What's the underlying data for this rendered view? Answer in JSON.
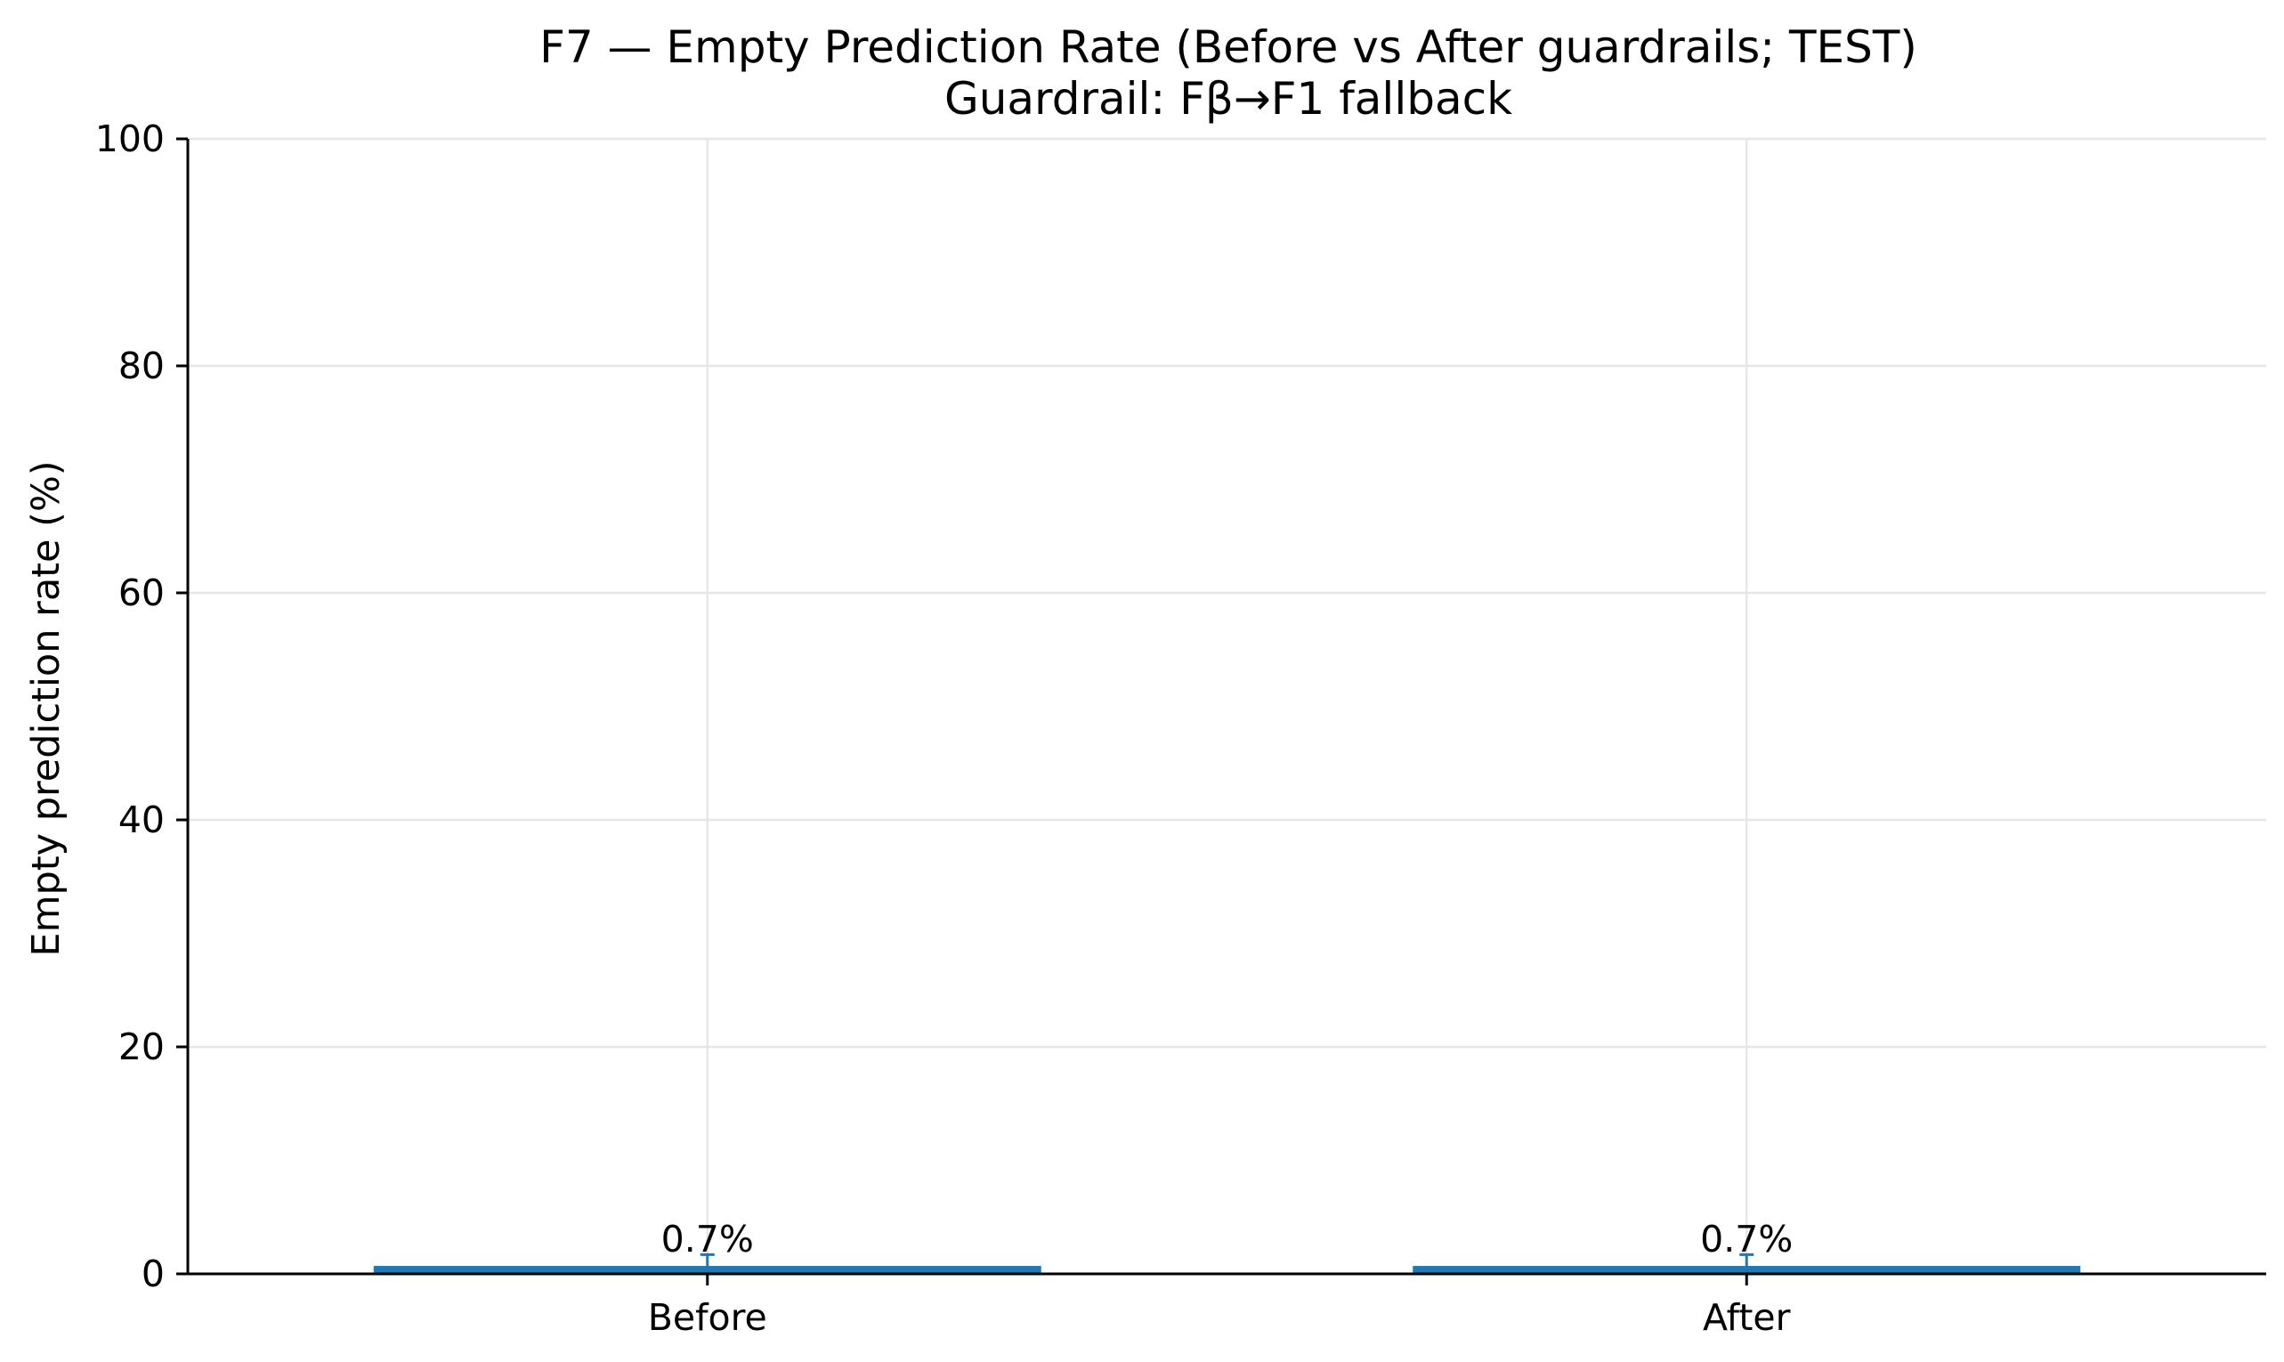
{
  "chart_data": {
    "type": "bar",
    "title": "F7 — Empty Prediction Rate (Before vs After guardrails; TEST)",
    "subtitle": "Guardrail: Fβ→F1 fallback",
    "xlabel": "",
    "ylabel": "Empty prediction rate (%)",
    "categories": [
      "Before",
      "After"
    ],
    "values": [
      0.7,
      0.7
    ],
    "error": [
      1.0,
      1.0
    ],
    "data_labels": [
      "0.7%",
      "0.7%"
    ],
    "ylim": [
      0,
      100
    ],
    "yticks": [
      0,
      20,
      40,
      60,
      80,
      100
    ],
    "grid": true,
    "bar_color": "#1f77b4",
    "grid_color": "#e6e6e6"
  }
}
